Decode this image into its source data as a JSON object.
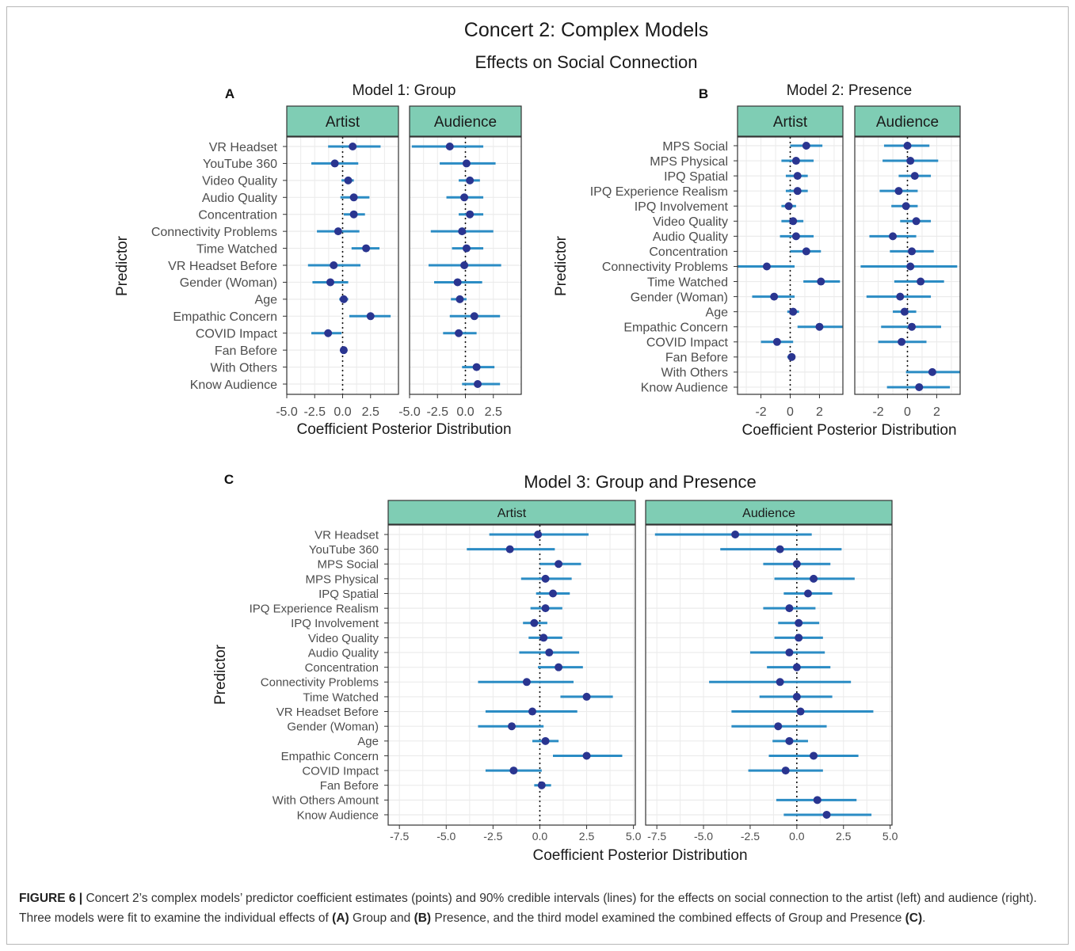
{
  "figure": {
    "title": "Concert 2: Complex Models",
    "subtitle": "Effects on Social Connection",
    "caption": {
      "label": "FIGURE 6 |",
      "p1": " Concert 2’s complex models’ predictor coefficient estimates (points) and 90% credible intervals (lines) for the effects on social connection to the artist (left) and audience (right). Three models were fit to examine the individual effects of ",
      "a": "(A)",
      "p2": " Group and ",
      "b": "(B)",
      "p3": " Presence, and the third model examined the combined effects of Group and Presence ",
      "c": "(C)",
      "p4": "."
    }
  },
  "colors": {
    "strip_fill": "#7fcdb4",
    "interval_line": "#2b8cc4",
    "point": "#2a3590",
    "grid": "#ebebeb",
    "panel_border": "#333333"
  },
  "chart_data": [
    {
      "type": "forest",
      "panel_label": "A",
      "title": "Model 1: Group",
      "xlabel": "Coefficient Posterior Distribution",
      "ylabel": "Predictor",
      "xlim": [
        -5,
        5
      ],
      "xticks": [
        -5,
        -2.5,
        0,
        2.5
      ],
      "xtick_labels": [
        "-5.0",
        "-2.5",
        "0.0",
        "2.5"
      ],
      "reference_line": 0,
      "grid": true,
      "predictors": [
        "VR Headset",
        "YouTube 360",
        "Video Quality",
        "Audio Quality",
        "Concentration",
        "Connectivity Problems",
        "Time Watched",
        "VR Headset Before",
        "Gender (Woman)",
        "Age",
        "Empathic Concern",
        "COVID Impact",
        "Fan Before",
        "With Others",
        "Know Audience"
      ],
      "facets": [
        {
          "name": "Artist",
          "estimates": [
            0.9,
            -0.7,
            0.5,
            1.0,
            1.0,
            -0.4,
            2.1,
            -0.8,
            -1.1,
            0.1,
            2.5,
            -1.3,
            0.1,
            null,
            null
          ],
          "lower": [
            -1.3,
            -2.8,
            -0.1,
            -0.2,
            0.1,
            -2.3,
            0.8,
            -3.1,
            -2.7,
            -0.3,
            0.6,
            -2.8,
            -0.2,
            null,
            null
          ],
          "upper": [
            3.4,
            1.4,
            1.0,
            2.4,
            2.0,
            1.5,
            3.3,
            1.6,
            0.5,
            0.5,
            4.3,
            -0.1,
            0.4,
            null,
            null
          ]
        },
        {
          "name": "Audience",
          "estimates": [
            -1.4,
            0.1,
            0.4,
            -0.1,
            0.4,
            -0.3,
            0.1,
            -0.1,
            -0.7,
            -0.5,
            0.8,
            -0.6,
            null,
            1.0,
            1.1
          ],
          "lower": [
            -4.8,
            -2.3,
            -0.6,
            -1.7,
            -0.6,
            -3.1,
            -1.2,
            -3.3,
            -2.8,
            -1.3,
            -1.4,
            -2.0,
            null,
            -0.3,
            -0.3
          ],
          "upper": [
            1.6,
            2.7,
            1.3,
            1.6,
            1.6,
            2.5,
            1.6,
            3.2,
            1.5,
            0.1,
            3.1,
            1.0,
            null,
            2.6,
            3.1
          ]
        }
      ]
    },
    {
      "type": "forest",
      "panel_label": "B",
      "title": "Model 2: Presence",
      "xlabel": "Coefficient Posterior Distribution",
      "ylabel": "Predictor",
      "xlim": [
        -3.6,
        3.6
      ],
      "xticks": [
        -2,
        0,
        2
      ],
      "xtick_labels": [
        "-2",
        "0",
        "2"
      ],
      "reference_line": 0,
      "grid": true,
      "predictors": [
        "MPS Social",
        "MPS Physical",
        "IPQ Spatial",
        "IPQ Experience Realism",
        "IPQ Involvement",
        "Video Quality",
        "Audio Quality",
        "Concentration",
        "Connectivity Problems",
        "Time Watched",
        "Gender (Woman)",
        "Age",
        "Empathic Concern",
        "COVID Impact",
        "Fan Before",
        "With Others",
        "Know Audience"
      ],
      "facets": [
        {
          "name": "Artist",
          "estimates": [
            1.1,
            0.4,
            0.5,
            0.5,
            -0.1,
            0.2,
            0.4,
            1.1,
            -1.6,
            2.1,
            -1.1,
            0.2,
            2.0,
            -0.9,
            0.1,
            null,
            null
          ],
          "lower": [
            0.0,
            -0.6,
            -0.3,
            -0.3,
            -0.6,
            -0.6,
            -0.7,
            0.0,
            -3.6,
            0.9,
            -2.6,
            -0.2,
            0.5,
            -2.0,
            -0.2,
            null,
            null
          ],
          "upper": [
            2.2,
            1.6,
            1.2,
            1.2,
            0.4,
            0.9,
            1.6,
            2.1,
            0.3,
            3.4,
            0.3,
            0.6,
            3.6,
            0.2,
            0.3,
            null,
            null
          ]
        },
        {
          "name": "Audience",
          "estimates": [
            0.0,
            0.2,
            0.5,
            -0.6,
            -0.1,
            0.6,
            -1.0,
            0.3,
            0.2,
            0.9,
            -0.5,
            -0.2,
            0.3,
            -0.4,
            null,
            1.7,
            0.8
          ],
          "lower": [
            -1.6,
            -1.7,
            -0.6,
            -1.9,
            -1.1,
            -0.5,
            -2.6,
            -1.2,
            -3.2,
            -0.9,
            -2.8,
            -1.0,
            -1.8,
            -2.0,
            null,
            -0.1,
            -1.4
          ],
          "upper": [
            1.5,
            2.1,
            1.6,
            0.7,
            0.7,
            1.6,
            0.6,
            1.8,
            3.4,
            2.5,
            1.6,
            0.6,
            2.3,
            1.3,
            null,
            3.6,
            2.9
          ]
        }
      ]
    },
    {
      "type": "forest",
      "panel_label": "C",
      "title": "Model 3: Group and Presence",
      "xlabel": "Coefficient Posterior Distribution",
      "ylabel": "Predictor",
      "xlim": [
        -8.1,
        5.1
      ],
      "xticks": [
        -7.5,
        -5,
        -2.5,
        0,
        2.5,
        5
      ],
      "xtick_labels": [
        "-7.5",
        "-5.0",
        "-2.5",
        "0.0",
        "2.5",
        "5.0"
      ],
      "reference_line": 0,
      "grid": true,
      "predictors": [
        "VR Headset",
        "YouTube 360",
        "MPS Social",
        "MPS Physical",
        "IPQ Spatial",
        "IPQ Experience Realism",
        "IPQ Involvement",
        "Video Quality",
        "Audio Quality",
        "Concentration",
        "Connectivity Problems",
        "Time Watched",
        "VR Headset Before",
        "Gender (Woman)",
        "Age",
        "Empathic Concern",
        "COVID Impact",
        "Fan Before",
        "With Others Amount",
        "Know Audience"
      ],
      "facets": [
        {
          "name": "Artist",
          "estimates": [
            -0.1,
            -1.6,
            1.0,
            0.3,
            0.7,
            0.3,
            -0.3,
            0.2,
            0.5,
            1.0,
            -0.7,
            2.5,
            -0.4,
            -1.5,
            0.3,
            2.5,
            -1.4,
            0.1,
            null,
            null
          ],
          "lower": [
            -2.7,
            -3.9,
            0.0,
            -1.0,
            -0.2,
            -0.5,
            -0.9,
            -0.6,
            -1.1,
            -0.1,
            -3.3,
            1.1,
            -2.9,
            -3.3,
            -0.4,
            0.7,
            -2.9,
            -0.3,
            null,
            null
          ],
          "upper": [
            2.6,
            0.8,
            2.2,
            1.7,
            1.6,
            1.2,
            0.4,
            1.2,
            2.1,
            2.3,
            1.8,
            3.9,
            2.0,
            0.2,
            1.0,
            4.4,
            0.1,
            0.6,
            null,
            null
          ]
        },
        {
          "name": "Audience",
          "estimates": [
            -3.3,
            -0.9,
            0.0,
            0.9,
            0.6,
            -0.4,
            0.1,
            0.1,
            -0.4,
            0.0,
            -0.9,
            0.0,
            0.2,
            -1.0,
            -0.4,
            0.9,
            -0.6,
            null,
            1.1,
            1.6
          ],
          "lower": [
            -7.6,
            -4.1,
            -1.8,
            -1.2,
            -0.7,
            -1.8,
            -1.0,
            -1.2,
            -2.5,
            -1.6,
            -4.7,
            -2.0,
            -3.5,
            -3.5,
            -1.3,
            -1.5,
            -2.6,
            null,
            -1.1,
            -0.7
          ],
          "upper": [
            0.8,
            2.4,
            1.8,
            3.1,
            1.9,
            1.0,
            1.2,
            1.4,
            1.5,
            1.8,
            2.9,
            1.9,
            4.1,
            1.6,
            0.6,
            3.3,
            1.4,
            null,
            3.2,
            4.0
          ]
        }
      ]
    }
  ]
}
